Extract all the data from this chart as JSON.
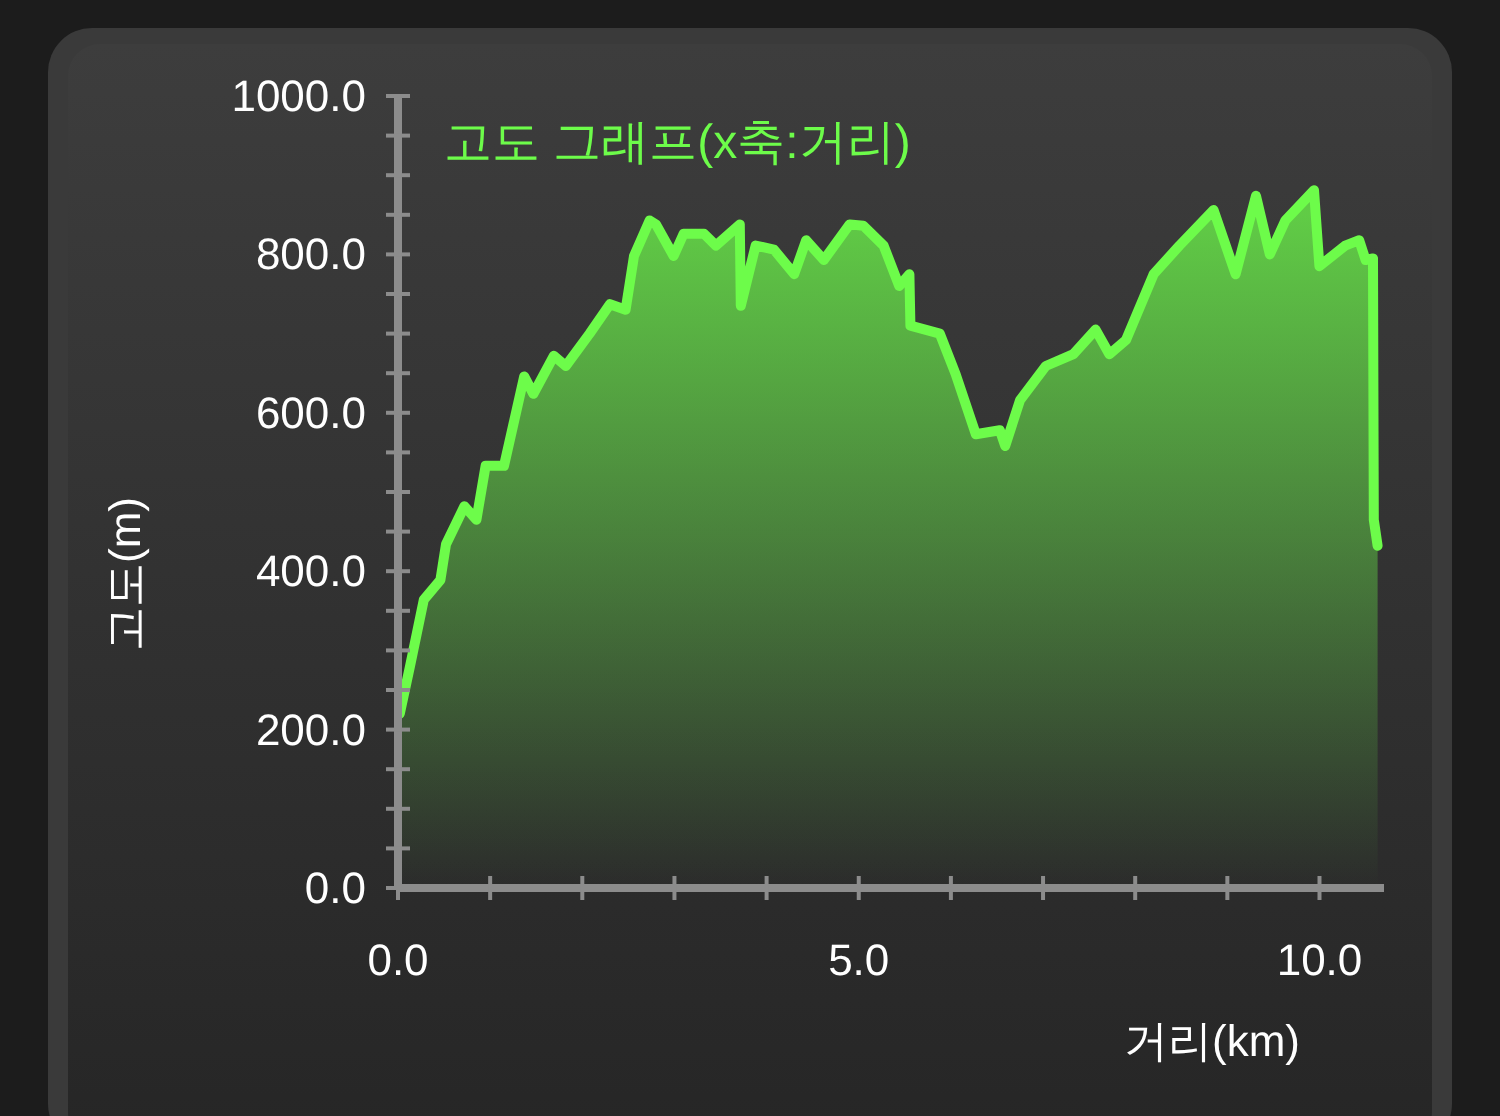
{
  "chart_data": {
    "type": "area",
    "title": "고도 그래프(x축:거리)",
    "xlabel": "거리(km)",
    "ylabel": "고도(m)",
    "color": "#6dfc4a",
    "x": [
      0.02,
      0.13,
      0.28,
      0.46,
      0.52,
      0.72,
      0.85,
      0.95,
      1.15,
      1.37,
      1.47,
      1.69,
      1.82,
      2.08,
      2.3,
      2.47,
      2.56,
      2.73,
      2.8,
      2.99,
      3.1,
      3.32,
      3.45,
      3.71,
      3.72,
      3.88,
      4.08,
      4.3,
      4.43,
      4.62,
      4.9,
      5.05,
      5.27,
      5.44,
      5.55,
      5.56,
      5.88,
      6.05,
      6.27,
      6.53,
      6.59,
      6.75,
      7.03,
      7.33,
      7.57,
      7.72,
      7.9,
      8.2,
      8.48,
      8.85,
      9.09,
      9.31,
      9.46,
      9.63,
      9.94,
      10.0,
      10.28,
      10.43,
      10.5,
      10.58,
      10.59,
      10.63
    ],
    "values": [
      220,
      280,
      364,
      389,
      434,
      482,
      465,
      533,
      533,
      646,
      624,
      672,
      659,
      700,
      737,
      730,
      798,
      843,
      838,
      798,
      826,
      826,
      811,
      838,
      735,
      811,
      806,
      775,
      818,
      793,
      838,
      836,
      811,
      760,
      775,
      710,
      700,
      649,
      573,
      578,
      558,
      616,
      659,
      674,
      705,
      674,
      692,
      775,
      811,
      856,
      775,
      874,
      800,
      843,
      881,
      785,
      811,
      818,
      793,
      795,
      465,
      432
    ],
    "xlim": [
      0,
      10.7
    ],
    "ylim": [
      0,
      1000
    ],
    "xticks": [
      {
        "value": 0,
        "label": "0.0"
      },
      {
        "value": 1,
        "label": null
      },
      {
        "value": 2,
        "label": null
      },
      {
        "value": 3,
        "label": null
      },
      {
        "value": 4,
        "label": null
      },
      {
        "value": 5,
        "label": "5.0"
      },
      {
        "value": 6,
        "label": null
      },
      {
        "value": 7,
        "label": null
      },
      {
        "value": 8,
        "label": null
      },
      {
        "value": 9,
        "label": null
      },
      {
        "value": 10,
        "label": "10.0"
      }
    ],
    "yticks": [
      {
        "value": 0,
        "label": "0.0"
      },
      {
        "value": 50,
        "label": null
      },
      {
        "value": 100,
        "label": null
      },
      {
        "value": 150,
        "label": null
      },
      {
        "value": 200,
        "label": "200.0"
      },
      {
        "value": 250,
        "label": null
      },
      {
        "value": 300,
        "label": null
      },
      {
        "value": 350,
        "label": null
      },
      {
        "value": 400,
        "label": "400.0"
      },
      {
        "value": 450,
        "label": null
      },
      {
        "value": 500,
        "label": null
      },
      {
        "value": 550,
        "label": null
      },
      {
        "value": 600,
        "label": "600.0"
      },
      {
        "value": 650,
        "label": null
      },
      {
        "value": 700,
        "label": null
      },
      {
        "value": 750,
        "label": null
      },
      {
        "value": 800,
        "label": "800.0"
      },
      {
        "value": 850,
        "label": null
      },
      {
        "value": 900,
        "label": null
      },
      {
        "value": 950,
        "label": null
      },
      {
        "value": 1000,
        "label": "1000.0"
      }
    ],
    "grid": false
  }
}
